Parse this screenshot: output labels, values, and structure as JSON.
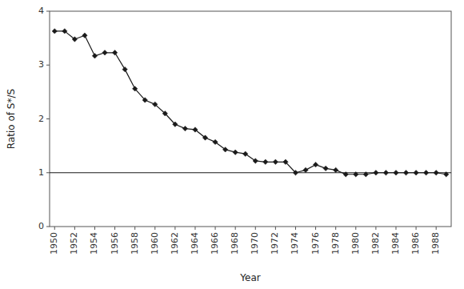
{
  "chart_data": {
    "type": "line",
    "xlabel": "Year",
    "ylabel": "Ratio of S*/S",
    "x": [
      1950,
      1951,
      1952,
      1953,
      1954,
      1955,
      1956,
      1957,
      1958,
      1959,
      1960,
      1961,
      1962,
      1963,
      1964,
      1965,
      1966,
      1967,
      1968,
      1969,
      1970,
      1971,
      1972,
      1973,
      1974,
      1975,
      1976,
      1977,
      1978,
      1979,
      1980,
      1981,
      1982,
      1983,
      1984,
      1985,
      1986,
      1987,
      1988,
      1989
    ],
    "values": [
      3.63,
      3.63,
      3.48,
      3.55,
      3.17,
      3.23,
      3.23,
      2.92,
      2.56,
      2.35,
      2.27,
      2.1,
      1.9,
      1.82,
      1.8,
      1.65,
      1.57,
      1.43,
      1.38,
      1.35,
      1.22,
      1.2,
      1.2,
      1.2,
      1.0,
      1.05,
      1.15,
      1.08,
      1.05,
      0.97,
      0.97,
      0.97,
      1.0,
      1.0,
      1.0,
      1.0,
      1.0,
      1.0,
      1.0,
      0.97
    ],
    "color": "#1a1a1a",
    "marker": "diamond",
    "hline": {
      "value": 1.0,
      "color": "#1a1a1a"
    },
    "xlim": [
      1949.5,
      1989.5
    ],
    "ylim": [
      0,
      4
    ],
    "xticks": [
      1950,
      1952,
      1954,
      1956,
      1958,
      1960,
      1962,
      1964,
      1966,
      1968,
      1970,
      1972,
      1974,
      1976,
      1978,
      1980,
      1982,
      1984,
      1986,
      1988
    ],
    "yticks": [
      0,
      1,
      2,
      3,
      4
    ],
    "grid": false
  }
}
